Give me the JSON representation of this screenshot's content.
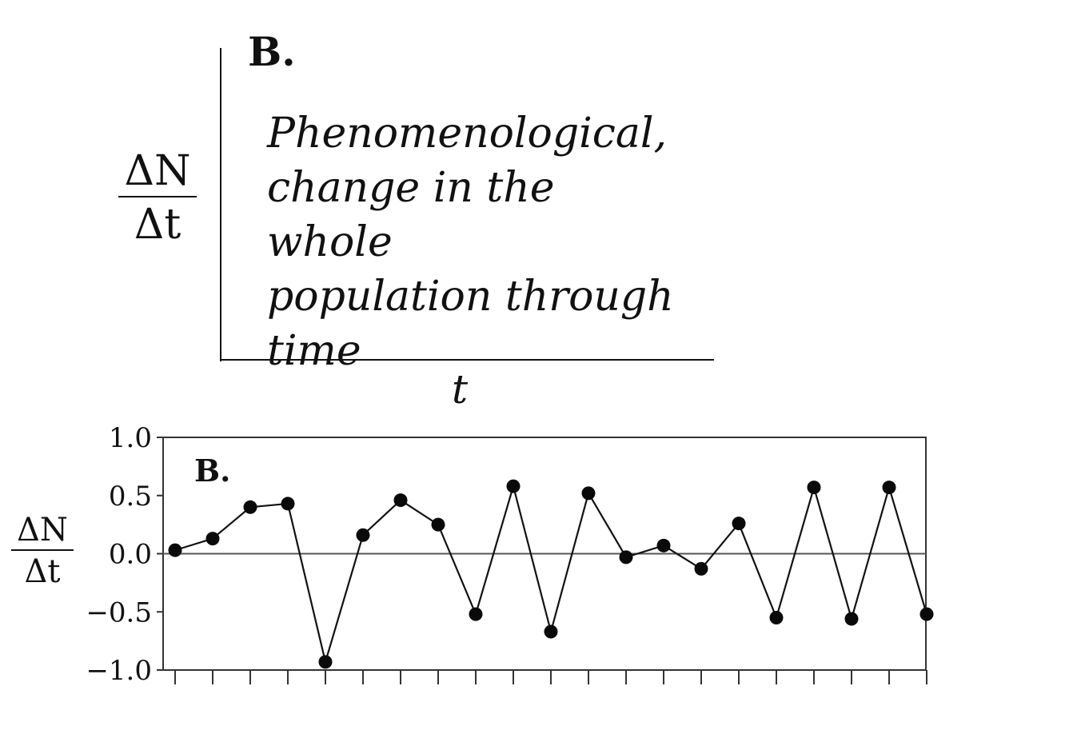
{
  "schematic": {
    "panel_label": "B.",
    "description": "Phenomenological,\nchange in the whole\npopulation through\ntime",
    "ylabel": {
      "numerator": "ΔN",
      "denominator": "Δt"
    },
    "xlabel": "t"
  },
  "chart_data": {
    "type": "line",
    "panel_label": "B.",
    "ylabel": {
      "numerator": "ΔN",
      "denominator": "Δt"
    },
    "xlabel": "",
    "ylim": [
      -1.0,
      1.0
    ],
    "yticks": [
      1.0,
      0.5,
      0.0,
      -0.5,
      -1.0
    ],
    "ytick_labels": [
      "1.0",
      "0.5",
      "0.0",
      "−0.5",
      "−1.0"
    ],
    "zero_line": true,
    "grid": false,
    "legend": "none",
    "marker": "circle",
    "series": [
      {
        "x": [
          1,
          2,
          3,
          4,
          5,
          6,
          7,
          8,
          9,
          10,
          11,
          12,
          13,
          14,
          15,
          16,
          17,
          18,
          19,
          20,
          21
        ],
        "values": [
          0.03,
          0.13,
          0.4,
          0.43,
          -0.93,
          0.16,
          0.46,
          0.25,
          -0.52,
          0.58,
          -0.67,
          0.52,
          -0.03,
          0.07,
          -0.13,
          0.26,
          -0.55,
          0.57,
          -0.56,
          0.57,
          -0.52
        ]
      }
    ]
  }
}
